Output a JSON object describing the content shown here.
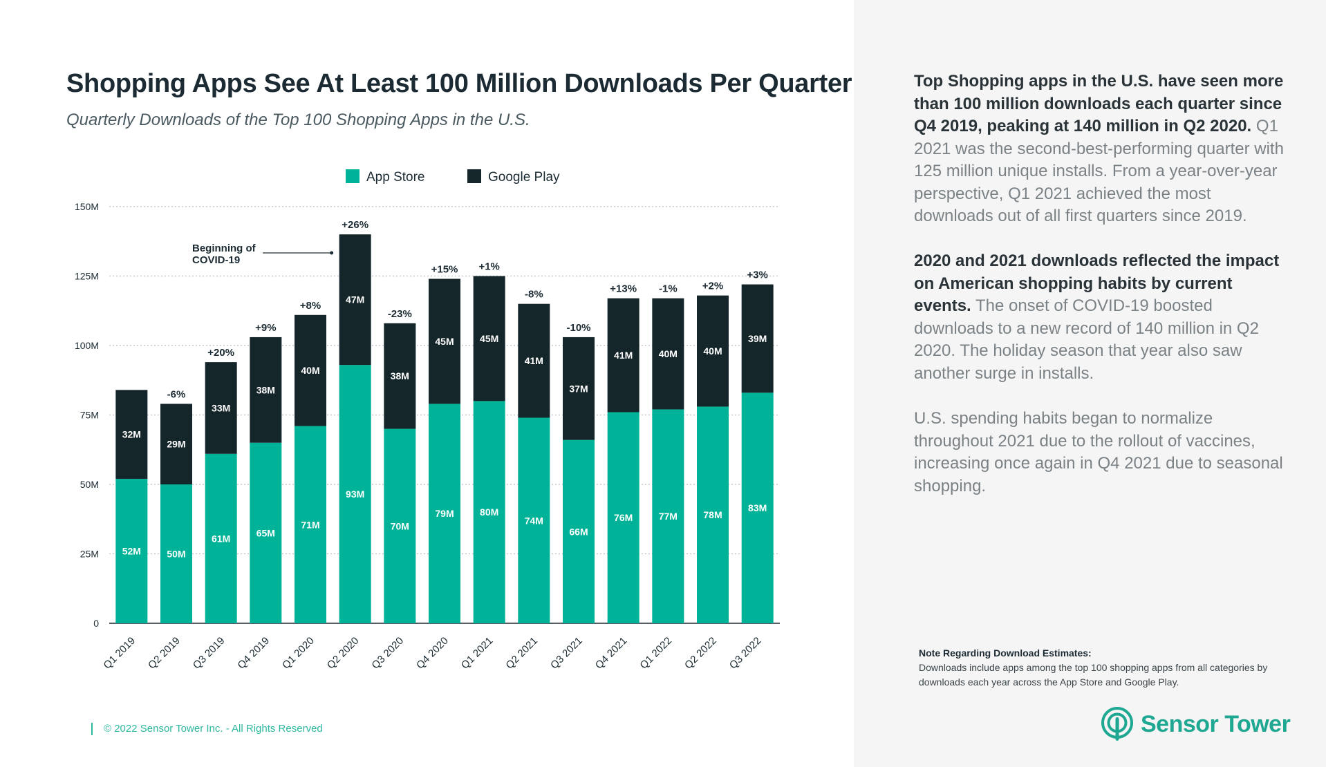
{
  "page": {
    "title": "Shopping Apps See At Least 100 Million Downloads Per Quarter",
    "subtitle": "Quarterly Downloads of the Top 100 Shopping Apps in the U.S.",
    "footer": "© 2022 Sensor Tower Inc. - All Rights Reserved",
    "logo_text": "Sensor Tower",
    "colors": {
      "app_store": "#00b398",
      "google_play": "#15262b",
      "accent": "#1ea892"
    }
  },
  "sidebar": {
    "p1_bold": "Top Shopping apps in the U.S. have seen more than 100 million downloads each quarter since Q4 2019, peaking at 140 million in Q2 2020.",
    "p1_rest": " Q1 2021 was the second-best-performing quarter with 125 million unique installs. From a year-over-year perspective, Q1 2021 achieved the most downloads out of all first quarters since 2019.",
    "p2_bold": "2020 and 2021 downloads reflected the impact on American shopping habits by current events.",
    "p2_rest": " The onset of COVID-19 boosted downloads to a new record of 140 million in Q2 2020. The holiday season that year also saw another surge in installs.",
    "p3": "U.S. spending habits began to normalize throughout 2021 due to the rollout of vaccines, increasing once again in Q4 2021 due to seasonal shopping.",
    "note_title": "Note Regarding Download Estimates:",
    "note_body": "Downloads include apps among the top 100 shopping apps from all categories by downloads each year across the App Store and Google Play."
  },
  "chart_data": {
    "type": "bar",
    "stacked": true,
    "categories": [
      "Q1 2019",
      "Q2 2019",
      "Q3 2019",
      "Q4 2019",
      "Q1 2020",
      "Q2 2020",
      "Q3 2020",
      "Q4 2020",
      "Q1 2021",
      "Q2 2021",
      "Q3 2021",
      "Q4 2021",
      "Q1 2022",
      "Q2 2022",
      "Q3 2022"
    ],
    "series": [
      {
        "name": "App Store",
        "values": [
          52,
          50,
          61,
          65,
          71,
          93,
          70,
          79,
          80,
          74,
          66,
          76,
          77,
          78,
          83
        ],
        "labels": [
          "52M",
          "50M",
          "61M",
          "65M",
          "71M",
          "93M",
          "70M",
          "79M",
          "80M",
          "74M",
          "66M",
          "76M",
          "77M",
          "78M",
          "83M"
        ]
      },
      {
        "name": "Google Play",
        "values": [
          32,
          29,
          33,
          38,
          40,
          47,
          38,
          45,
          45,
          41,
          37,
          41,
          40,
          40,
          39
        ],
        "labels": [
          "32M",
          "29M",
          "33M",
          "38M",
          "40M",
          "47M",
          "38M",
          "45M",
          "45M",
          "41M",
          "37M",
          "41M",
          "40M",
          "40M",
          "39M"
        ]
      }
    ],
    "change_labels": [
      "",
      "-6%",
      "+20%",
      "+9%",
      "+8%",
      "+26%",
      "-23%",
      "+15%",
      "+1%",
      "-8%",
      "-10%",
      "+13%",
      "-1%",
      "+2%",
      "+3%"
    ],
    "y_ticks": [
      "0",
      "25M",
      "50M",
      "75M",
      "100M",
      "125M",
      "150M"
    ],
    "y_tick_values": [
      0,
      25,
      50,
      75,
      100,
      125,
      150
    ],
    "ylim": [
      0,
      150
    ],
    "grid": true,
    "legend_position": "top-center",
    "annotation": {
      "text_line1": "Beginning of",
      "text_line2": "COVID-19",
      "category": "Q2 2020"
    }
  }
}
